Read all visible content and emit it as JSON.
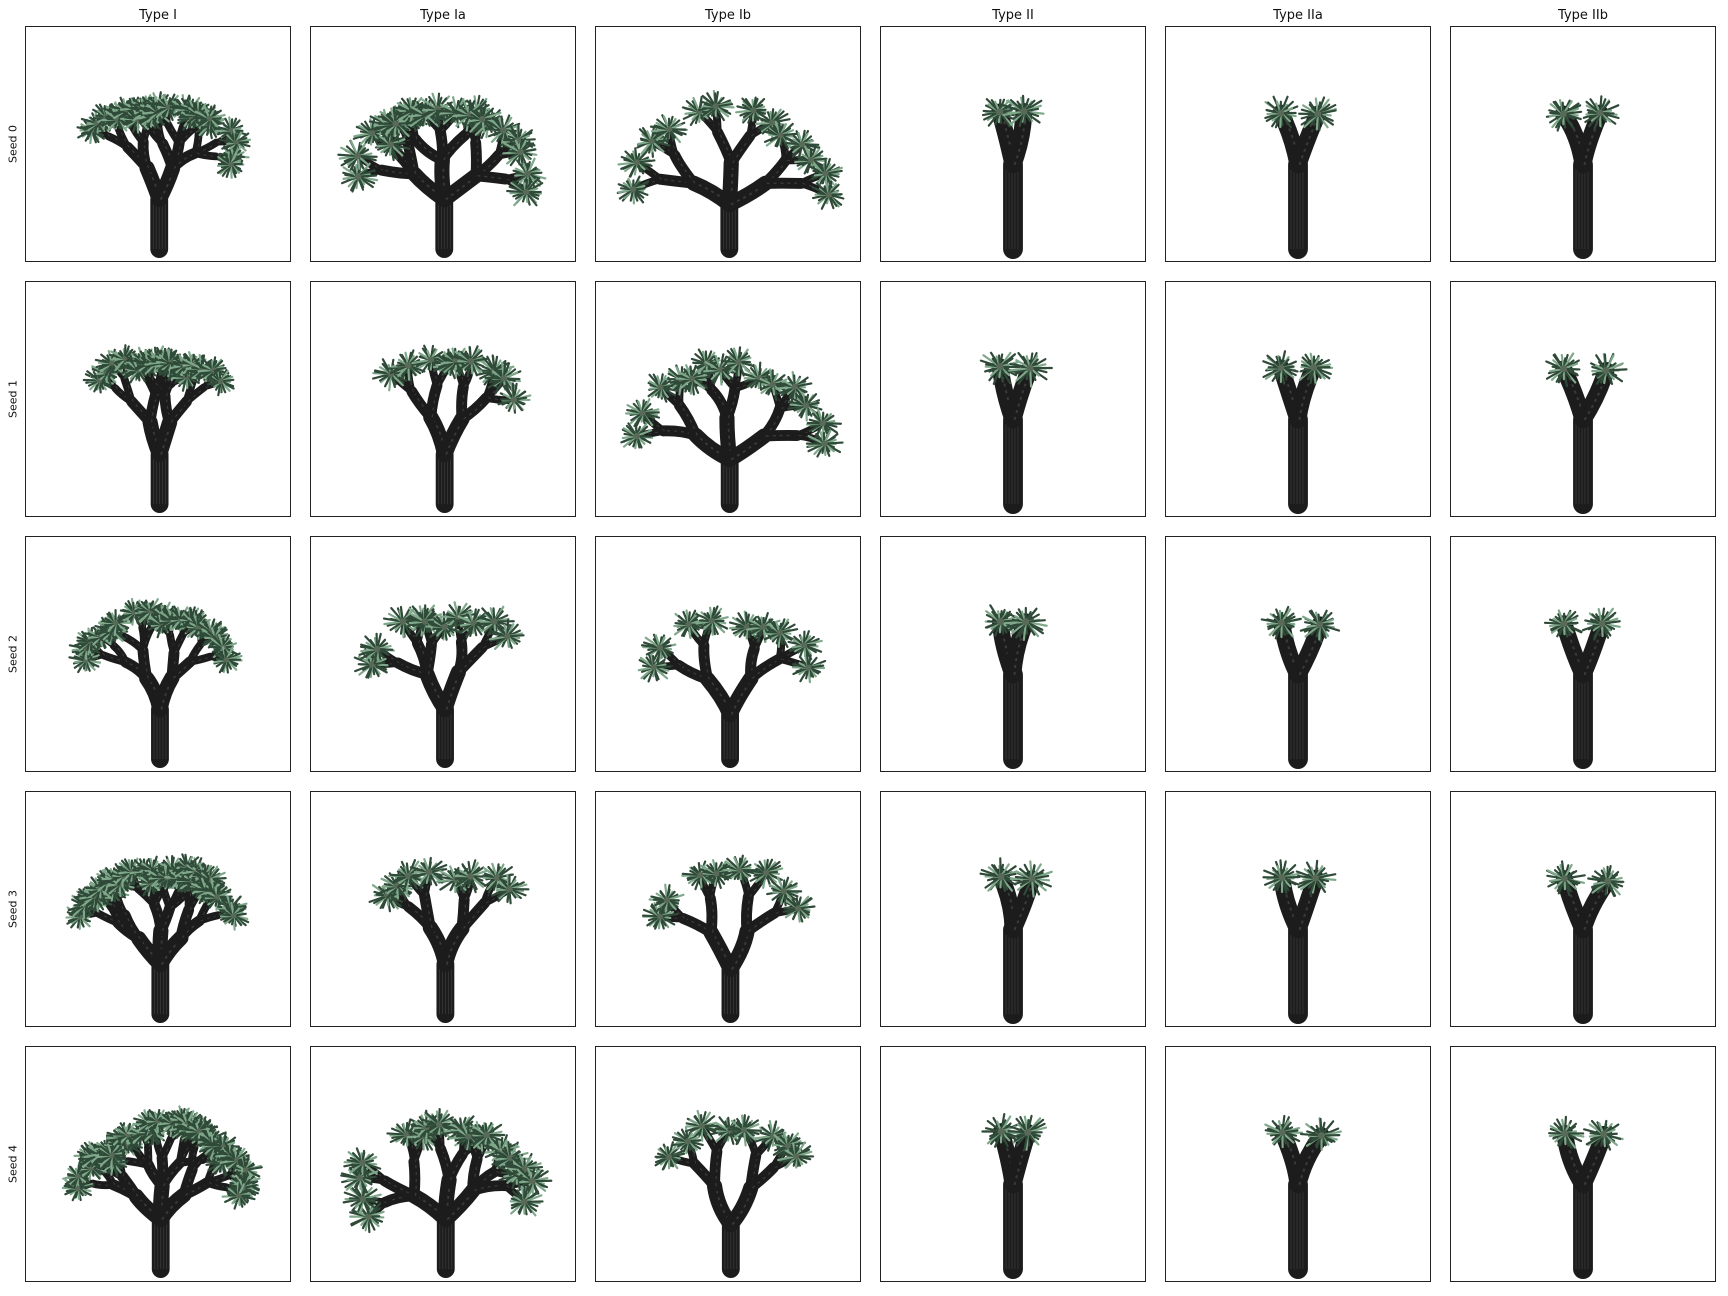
{
  "figure": {
    "columns": [
      "Type I",
      "Type Ia",
      "Type Ib",
      "Type II",
      "Type IIa",
      "Type IIb"
    ],
    "rows": [
      "Seed 0",
      "Seed 1",
      "Seed 2",
      "Seed 3",
      "Seed 4"
    ],
    "panel_content": "joshua-tree-render",
    "colors": {
      "trunk": "#1c1c1c",
      "trunk_highlight": "#3a3a3a",
      "leaf_dark": "#2f4a38",
      "leaf_light": "#7fa88a",
      "background": "#ffffff",
      "frame": "#222222"
    }
  }
}
